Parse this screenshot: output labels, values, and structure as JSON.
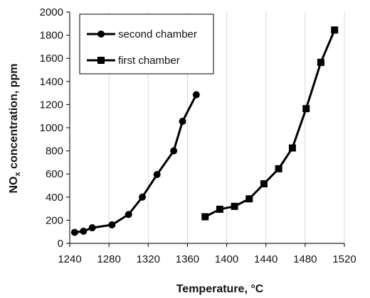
{
  "chart_data": {
    "type": "scatter",
    "title": "",
    "xlabel": "Temperature, °C",
    "ylabel_main": "NO",
    "ylabel_sub": "x",
    "ylabel_rest": " concentration, ppm",
    "xlim": [
      1240,
      1520
    ],
    "ylim": [
      0,
      2000
    ],
    "xticks": [
      1240,
      1280,
      1320,
      1360,
      1400,
      1440,
      1480,
      1520
    ],
    "yticks": [
      0,
      200,
      400,
      600,
      800,
      1000,
      1200,
      1400,
      1600,
      1800,
      2000
    ],
    "grid": "vertical",
    "legend_position": "top-left",
    "series": [
      {
        "name": "second chamber",
        "marker": "circle",
        "color": "#000000",
        "x": [
          1245,
          1254,
          1263,
          1283,
          1300,
          1314,
          1329,
          1346,
          1355,
          1369
        ],
        "y": [
          95,
          105,
          135,
          160,
          250,
          400,
          595,
          800,
          1055,
          1285
        ]
      },
      {
        "name": "first chamber",
        "marker": "square",
        "color": "#000000",
        "x": [
          1378,
          1393,
          1408,
          1423,
          1438,
          1453,
          1467,
          1481,
          1496,
          1510
        ],
        "y": [
          230,
          295,
          320,
          385,
          515,
          645,
          825,
          1165,
          1565,
          1845
        ]
      }
    ]
  }
}
